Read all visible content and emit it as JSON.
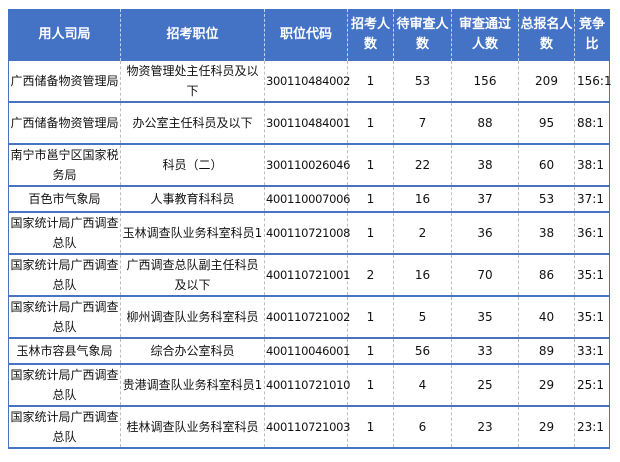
{
  "table": {
    "headers": [
      "用人司局",
      "招考职位",
      "职位代码",
      "招考人数",
      "待审查人数",
      "审查通过人数",
      "总报名人数",
      "竞争比"
    ],
    "rows": [
      [
        "广西储备物资管理局",
        "物资管理处主任科员及以下",
        "300110484002",
        "1",
        "53",
        "156",
        "209",
        "156:1"
      ],
      [
        "广西储备物资管理局",
        "办公室主任科员及以下",
        "300110484001",
        "1",
        "7",
        "88",
        "95",
        "88:1"
      ],
      [
        "南宁市邕宁区国家税务局",
        "科员（二）",
        "300110026046",
        "1",
        "22",
        "38",
        "60",
        "38:1"
      ],
      [
        "百色市气象局",
        "人事教育科科员",
        "400110007006",
        "1",
        "16",
        "37",
        "53",
        "37:1"
      ],
      [
        "国家统计局广西调查总队",
        "玉林调查队业务科室科员1",
        "400110721008",
        "1",
        "2",
        "36",
        "38",
        "36:1"
      ],
      [
        "国家统计局广西调查总队",
        "广西调查总队副主任科员及以下",
        "400110721001",
        "2",
        "16",
        "70",
        "86",
        "35:1"
      ],
      [
        "国家统计局广西调查总队",
        "柳州调查队业务科室科员",
        "400110721002",
        "1",
        "5",
        "35",
        "40",
        "35:1"
      ],
      [
        "玉林市容县气象局",
        "综合办公室科员",
        "400110046001",
        "1",
        "56",
        "33",
        "89",
        "33:1"
      ],
      [
        "国家统计局广西调查总队",
        "贵港调查队业务科室科员1",
        "400110721010",
        "1",
        "4",
        "25",
        "29",
        "25:1"
      ],
      [
        "国家统计局广西调查总队",
        "桂林调查队业务科室科员",
        "400110721003",
        "1",
        "6",
        "23",
        "29",
        "23:1"
      ]
    ]
  },
  "colors": {
    "header_bg": "#4472c4",
    "header_text": "#ffffff",
    "row_border": "#4a72c4"
  }
}
